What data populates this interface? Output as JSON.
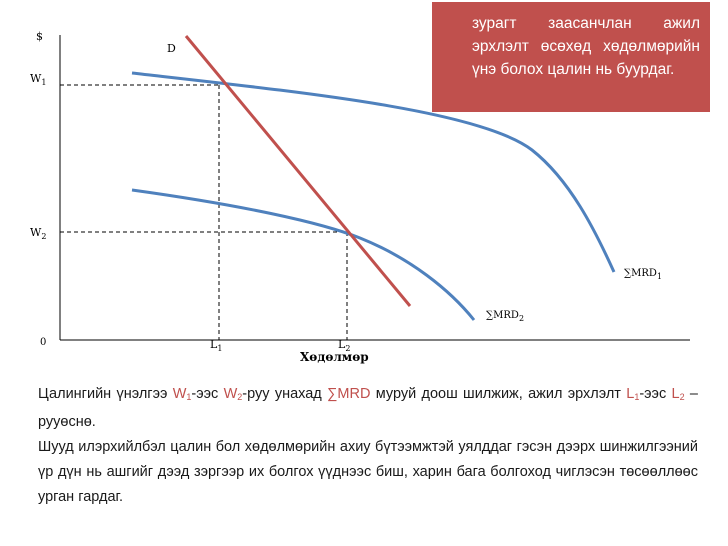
{
  "diagram": {
    "y_axis_label": "$",
    "origin_label": "0",
    "x_axis_label": "Хөдөлмөр",
    "w1_label": "W",
    "w1_sub": "1",
    "w2_label": "W",
    "w2_sub": "2",
    "l1_label": "L",
    "l1_sub": "1",
    "l2_label": "L",
    "l2_sub": "2",
    "supply_curve_label": "D",
    "mrd1_label": "∑MRD",
    "mrd1_sub": "1",
    "mrd2_label": "∑MRD",
    "mrd2_sub": "2",
    "colors": {
      "supply_line": "#c0504d",
      "demand_curves": "#4f81bd",
      "axes": "#000000",
      "callout_bg": "#c0504d"
    }
  },
  "callout": {
    "text": "зурагт заасанчлан ажил эрхлэлт өсөхөд хөдөлмөрийн үнэ болох цалин нь буурдаг."
  },
  "body": {
    "p1": {
      "t1": "Цалингийн үнэлгээ ",
      "w1": "W",
      "w1_sub": "1",
      "t2": "-ээс ",
      "w2": "W",
      "w2_sub": "2",
      "t3": "-руу унахад ",
      "mrd": "∑MRD",
      "t4": " муруй доош шилжиж, ажил эрхлэлт ",
      "l1": "L",
      "l1_sub": "1",
      "t5": "-ээс ",
      "l2": "L",
      "l2_sub": "2",
      "t6": " –рууөснө."
    },
    "p2": "Шууд илэрхийлбэл цалин бол хөдөлмөрийн ахиу бүтээмжтэй уялддаг гэсэн дээрх шинжилгээний үр дүн нь ашгийг дээд зэргээр их болгох үүднээс биш, харин бага болгоход чиглэсэн төсөөллөөс урган гардаг."
  }
}
